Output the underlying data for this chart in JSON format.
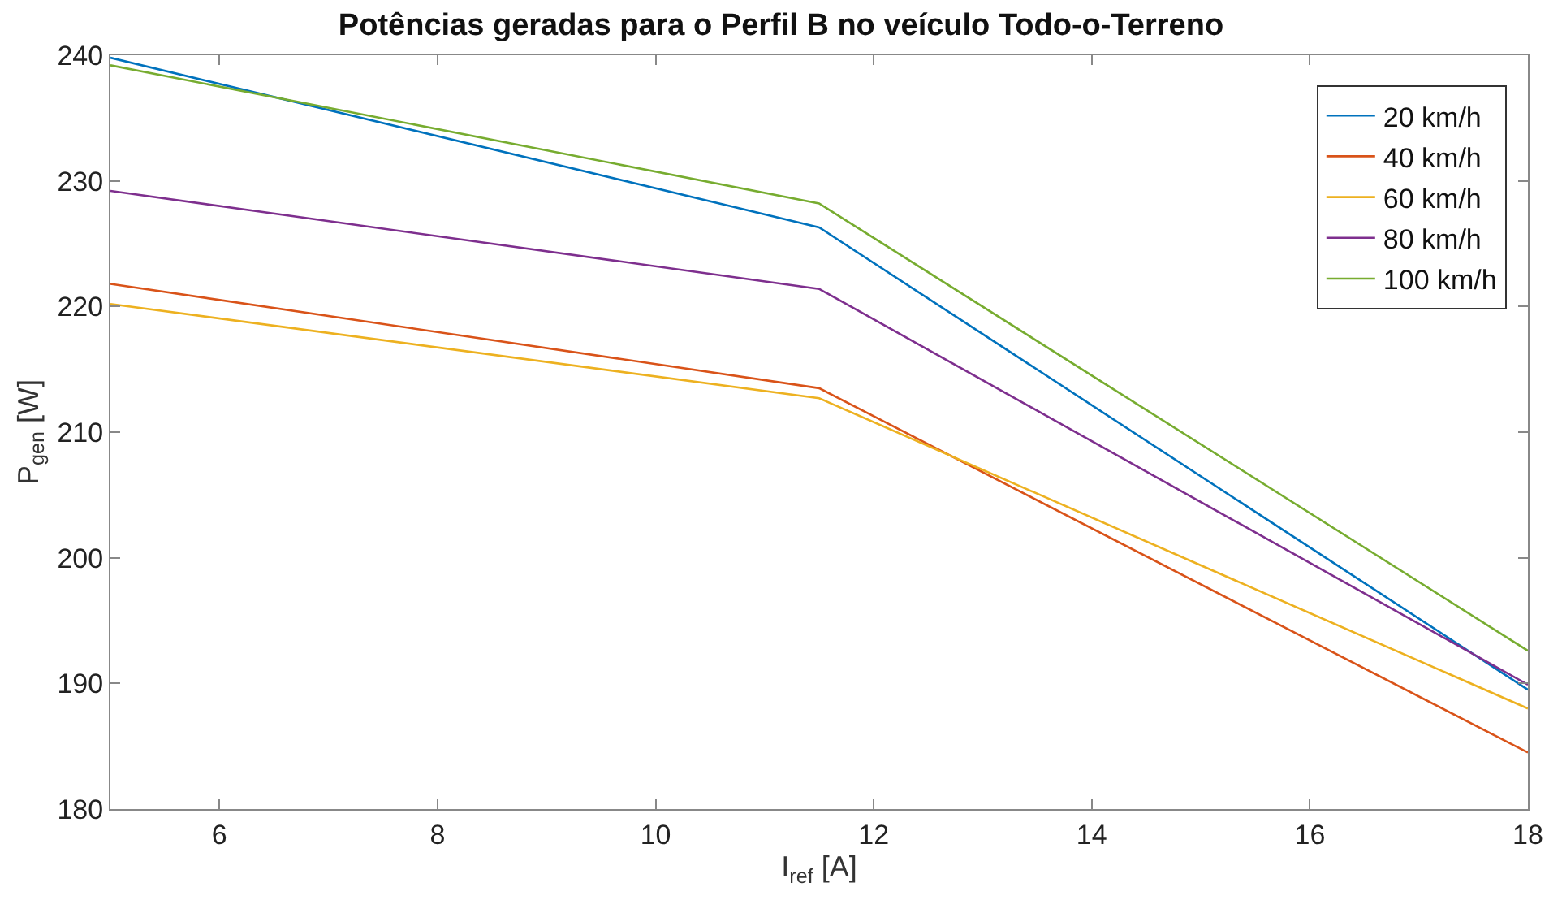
{
  "chart_data": {
    "type": "line",
    "title": "Potências geradas para o Perfil B no veículo Todo-o-Terreno",
    "xlabel": "I$_{ref}$ [A]",
    "ylabel": "P$_{gen}$ [W]",
    "x": [
      5,
      11.5,
      18
    ],
    "series": [
      {
        "name": "20 km/h",
        "color": "#0072bd",
        "values": [
          239.8,
          226.3,
          189.5
        ]
      },
      {
        "name": "40 km/h",
        "color": "#d95319",
        "values": [
          221.8,
          213.5,
          184.5
        ]
      },
      {
        "name": "60 km/h",
        "color": "#edb120",
        "values": [
          220.2,
          212.7,
          188.0
        ]
      },
      {
        "name": "80 km/h",
        "color": "#7e2f8e",
        "values": [
          229.2,
          221.4,
          189.9
        ]
      },
      {
        "name": "100 km/h",
        "color": "#77ac30",
        "values": [
          239.2,
          228.2,
          192.6
        ]
      }
    ],
    "xlim": [
      5,
      18
    ],
    "xticks": [
      6,
      8,
      10,
      12,
      14,
      16,
      18
    ],
    "ylim": [
      180,
      240
    ],
    "yticks": [
      180,
      190,
      200,
      210,
      220,
      230,
      240
    ],
    "legend": "top right",
    "marker": "none",
    "line_style": "solid"
  }
}
